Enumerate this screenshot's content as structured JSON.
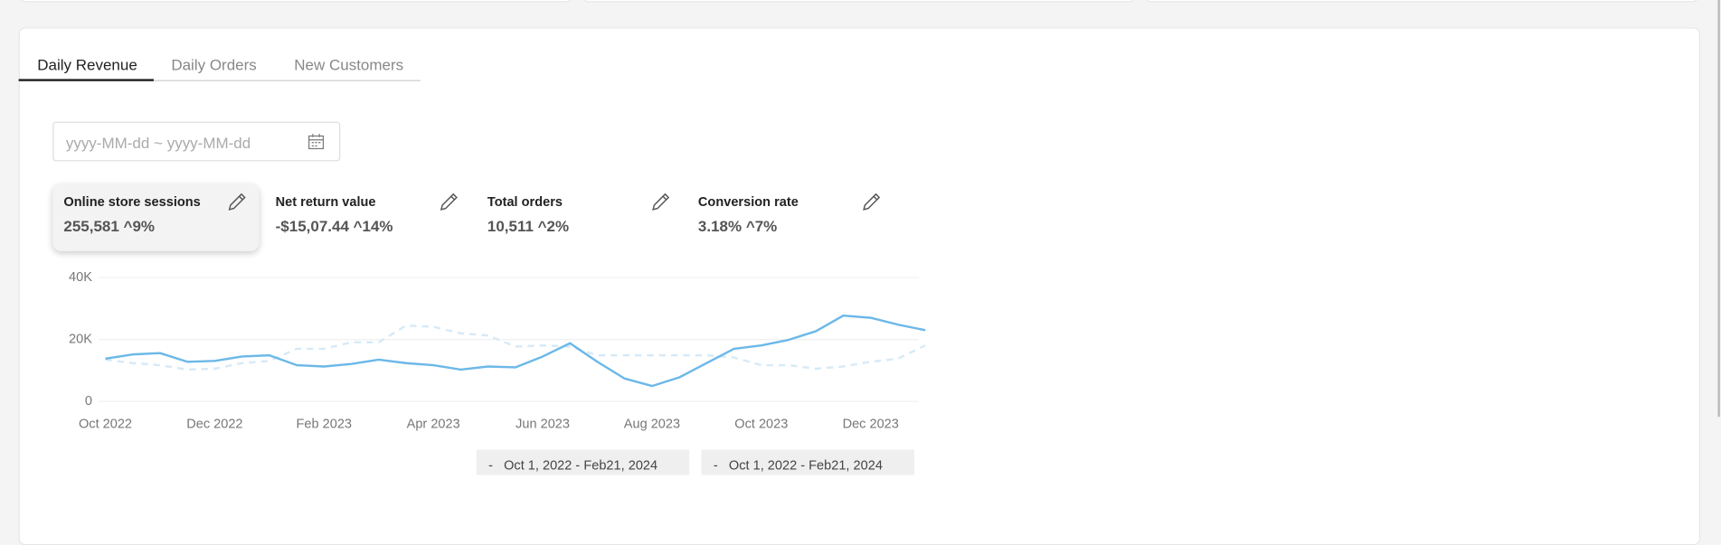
{
  "tabs": [
    "Daily Revenue",
    "Daily Orders",
    "New Customers"
  ],
  "date_placeholder": "yyyy-MM-dd ~ yyyy-MM-dd",
  "metrics": [
    {
      "label": "Online store sessions",
      "value": "255,581 ^9%"
    },
    {
      "label": "Net return value",
      "value": "-$15,07.44 ^14%"
    },
    {
      "label": "Total orders",
      "value": "10,511 ^2%"
    },
    {
      "label": "Conversion rate",
      "value": "3.18% ^7%"
    }
  ],
  "chart_data": {
    "type": "line",
    "categories": [
      "Oct 2022",
      null,
      null,
      null,
      "Dec 2022",
      null,
      null,
      null,
      "Feb 2023",
      null,
      null,
      null,
      "Apr 2023",
      null,
      null,
      null,
      "Jun 2023",
      null,
      null,
      null,
      "Aug 2023",
      null,
      null,
      null,
      "Oct 2023",
      null,
      null,
      null,
      "Dec 2023",
      null,
      null
    ],
    "ylim": [
      0,
      40000
    ],
    "yticks": [
      {
        "value": 0,
        "label": "0"
      },
      {
        "value": 20000,
        "label": "20K"
      },
      {
        "value": 40000,
        "label": "40K"
      }
    ],
    "grid": true,
    "series": [
      {
        "name": "Oct 1, 2022 - Feb21, 2024",
        "color": "#6cb8e8",
        "dashed": false,
        "values": [
          13800,
          15200,
          15600,
          12800,
          13100,
          14500,
          14900,
          11700,
          11300,
          12100,
          13500,
          12400,
          11700,
          10300,
          11300,
          11000,
          14500,
          18800,
          12800,
          7400,
          5000,
          7800,
          12400,
          17000,
          18100,
          19900,
          22700,
          27700,
          27000,
          24800,
          23000
        ]
      },
      {
        "name": "Oct 1, 2022 - Feb21, 2024",
        "color": "#d6eaf7",
        "dashed": true,
        "values": [
          13500,
          12400,
          11700,
          10300,
          10600,
          12400,
          13100,
          17000,
          17000,
          19100,
          19100,
          24500,
          24100,
          22000,
          21300,
          17700,
          18100,
          17700,
          14900,
          14900,
          14900,
          14900,
          14900,
          14200,
          11700,
          11700,
          10600,
          11300,
          12800,
          13800,
          18100
        ]
      }
    ]
  }
}
